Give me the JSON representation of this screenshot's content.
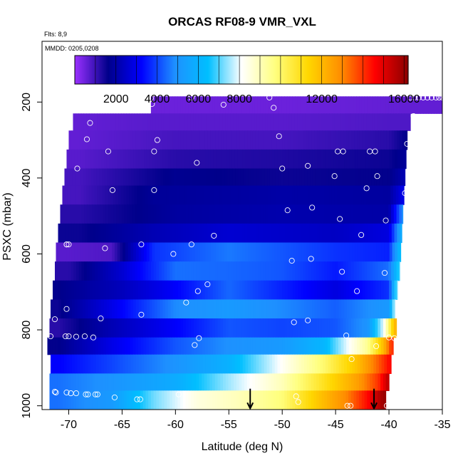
{
  "chart_data": {
    "type": "heatmap",
    "title": "ORCAS RF08-9 VMR_VXL",
    "flights_note": "Flts: 8,9",
    "date_note": "MMDD: 0205,0208",
    "xlabel": "Latitude (deg N)",
    "ylabel": "PSXC (mbar)",
    "xlim": [
      -72.5,
      -35
    ],
    "ylim": [
      1010,
      40
    ],
    "y_reversed": true,
    "x_ticks": [
      -70,
      -65,
      -60,
      -55,
      -50,
      -45,
      -40,
      -35
    ],
    "x_tick_labels": [
      "-70",
      "-65",
      "-60",
      "-55",
      "-50",
      "-45",
      "-40",
      "-35"
    ],
    "y_ticks": [
      200,
      400,
      600,
      800,
      1000
    ],
    "y_tick_labels": [
      "200",
      "400",
      "600",
      "800",
      "1000"
    ],
    "colorbar": {
      "min": 0,
      "max": 16200,
      "ticks": [
        2000,
        4000,
        6000,
        8000,
        12000,
        16000
      ],
      "tick_labels": [
        "2000",
        "4000",
        "6000",
        "8000",
        "12000",
        "16000"
      ],
      "colors": [
        "#9b30ff",
        "#00008b",
        "#0000ff",
        "#1e90ff",
        "#00bfff",
        "#ffffff",
        "#ffff80",
        "#ffd700",
        "#ff8c00",
        "#ff0000",
        "#8b0000"
      ]
    },
    "bands": [
      {
        "p_top": 185,
        "p_bot": 230,
        "x_min": -62.3,
        "x_max": -35.0,
        "values": [
          {
            "x": -62,
            "v": 500
          },
          {
            "x": -50,
            "v": 500
          },
          {
            "x": -38,
            "v": 600
          }
        ]
      },
      {
        "p_top": 230,
        "p_bot": 275,
        "x_min": -69.6,
        "x_max": -38.0,
        "values": [
          {
            "x": -69,
            "v": 600
          },
          {
            "x": -62,
            "v": 700
          },
          {
            "x": -50,
            "v": 700
          },
          {
            "x": -40,
            "v": 800
          }
        ]
      },
      {
        "p_top": 275,
        "p_bot": 325,
        "x_min": -70.0,
        "x_max": -38.3,
        "values": [
          {
            "x": -69,
            "v": 600
          },
          {
            "x": -60,
            "v": 900
          },
          {
            "x": -50,
            "v": 900
          },
          {
            "x": -40,
            "v": 1200
          },
          {
            "x": -38.5,
            "v": 1600
          }
        ]
      },
      {
        "p_top": 325,
        "p_bot": 375,
        "x_min": -70.2,
        "x_max": -38.4,
        "values": [
          {
            "x": -69,
            "v": 700
          },
          {
            "x": -60,
            "v": 1200
          },
          {
            "x": -50,
            "v": 1300
          },
          {
            "x": -40,
            "v": 1500
          },
          {
            "x": -38.5,
            "v": 1800
          }
        ]
      },
      {
        "p_top": 375,
        "p_bot": 420,
        "x_min": -70.4,
        "x_max": -38.5,
        "values": [
          {
            "x": -69,
            "v": 900
          },
          {
            "x": -60,
            "v": 1700
          },
          {
            "x": -50,
            "v": 1500
          },
          {
            "x": -40,
            "v": 1600
          },
          {
            "x": -38.5,
            "v": 2200
          }
        ]
      },
      {
        "p_top": 420,
        "p_bot": 470,
        "x_min": -70.6,
        "x_max": -38.6,
        "values": [
          {
            "x": -69,
            "v": 900
          },
          {
            "x": -62,
            "v": 1800
          },
          {
            "x": -50,
            "v": 2000
          },
          {
            "x": -40,
            "v": 1900
          },
          {
            "x": -38.6,
            "v": 3000
          }
        ]
      },
      {
        "p_top": 470,
        "p_bot": 520,
        "x_min": -70.8,
        "x_max": -38.7,
        "values": [
          {
            "x": -69,
            "v": 1200
          },
          {
            "x": -60,
            "v": 1900
          },
          {
            "x": -50,
            "v": 2100
          },
          {
            "x": -40,
            "v": 2000
          },
          {
            "x": -38.7,
            "v": 5000
          }
        ]
      },
      {
        "p_top": 520,
        "p_bot": 570,
        "x_min": -71.0,
        "x_max": -38.8,
        "values": [
          {
            "x": -69,
            "v": 1500
          },
          {
            "x": -62,
            "v": 2200
          },
          {
            "x": -55,
            "v": 2600
          },
          {
            "x": -45,
            "v": 2400
          },
          {
            "x": -40,
            "v": 2800
          },
          {
            "x": -38.8,
            "v": 6000
          }
        ]
      },
      {
        "p_top": 570,
        "p_bot": 620,
        "x_min": -71.2,
        "x_max": -38.9,
        "values": [
          {
            "x": -70,
            "v": 700
          },
          {
            "x": -66,
            "v": 800
          },
          {
            "x": -62,
            "v": 3800
          },
          {
            "x": -55,
            "v": 4600
          },
          {
            "x": -50,
            "v": 4200
          },
          {
            "x": -45,
            "v": 3800
          },
          {
            "x": -40,
            "v": 3600
          },
          {
            "x": -38.9,
            "v": 6500
          }
        ]
      },
      {
        "p_top": 620,
        "p_bot": 670,
        "x_min": -71.3,
        "x_max": -39.0,
        "values": [
          {
            "x": -70,
            "v": 1200
          },
          {
            "x": -65,
            "v": 2600
          },
          {
            "x": -60,
            "v": 4500
          },
          {
            "x": -55,
            "v": 4400
          },
          {
            "x": -50,
            "v": 4200
          },
          {
            "x": -45,
            "v": 3500
          },
          {
            "x": -40,
            "v": 4500
          },
          {
            "x": -39,
            "v": 7000
          }
        ]
      },
      {
        "p_top": 670,
        "p_bot": 720,
        "x_min": -71.5,
        "x_max": -39.2,
        "values": [
          {
            "x": -71,
            "v": 1600
          },
          {
            "x": -65,
            "v": 2300
          },
          {
            "x": -60,
            "v": 3200
          },
          {
            "x": -55,
            "v": 4400
          },
          {
            "x": -50,
            "v": 3600
          },
          {
            "x": -45,
            "v": 2800
          },
          {
            "x": -40,
            "v": 3800
          },
          {
            "x": -39.2,
            "v": 7500
          }
        ]
      },
      {
        "p_top": 720,
        "p_bot": 770,
        "x_min": -71.7,
        "x_max": -39.4,
        "values": [
          {
            "x": -71,
            "v": 1500
          },
          {
            "x": -66,
            "v": 2900
          },
          {
            "x": -60,
            "v": 4800
          },
          {
            "x": -55,
            "v": 5200
          },
          {
            "x": -50,
            "v": 4800
          },
          {
            "x": -45,
            "v": 4300
          },
          {
            "x": -40,
            "v": 5200
          },
          {
            "x": -39.3,
            "v": 8500
          },
          {
            "x": -39,
            "v": 11000
          }
        ]
      },
      {
        "p_top": 770,
        "p_bot": 820,
        "x_min": -71.8,
        "x_max": -39.3,
        "values": [
          {
            "x": -71,
            "v": 1200
          },
          {
            "x": -66,
            "v": 2200
          },
          {
            "x": -60,
            "v": 3200
          },
          {
            "x": -55,
            "v": 4200
          },
          {
            "x": -50,
            "v": 4000
          },
          {
            "x": -45,
            "v": 4200
          },
          {
            "x": -42,
            "v": 5000
          },
          {
            "x": -40.5,
            "v": 8000
          },
          {
            "x": -39.5,
            "v": 12000
          }
        ]
      },
      {
        "p_top": 820,
        "p_bot": 865,
        "x_min": -72.0,
        "x_max": -39.6,
        "values": [
          {
            "x": -71,
            "v": 1600
          },
          {
            "x": -66,
            "v": 2900
          },
          {
            "x": -60,
            "v": 4200
          },
          {
            "x": -55,
            "v": 4900
          },
          {
            "x": -50,
            "v": 5200
          },
          {
            "x": -46,
            "v": 6200
          },
          {
            "x": -44,
            "v": 7900
          },
          {
            "x": -42,
            "v": 9500
          },
          {
            "x": -40.5,
            "v": 12000
          },
          {
            "x": -39.8,
            "v": 14000
          }
        ]
      },
      {
        "p_top": 865,
        "p_bot": 915,
        "x_min": -71.7,
        "x_max": -39.8,
        "values": [
          {
            "x": -71,
            "v": 3200
          },
          {
            "x": -66,
            "v": 4000
          },
          {
            "x": -60,
            "v": 5000
          },
          {
            "x": -55,
            "v": 6000
          },
          {
            "x": -50,
            "v": 8200
          },
          {
            "x": -46,
            "v": 10000
          },
          {
            "x": -43,
            "v": 11800
          },
          {
            "x": -41,
            "v": 13500
          },
          {
            "x": -40,
            "v": 14500
          }
        ]
      },
      {
        "p_top": 915,
        "p_bot": 960,
        "x_min": -71.8,
        "x_max": -40.0,
        "values": [
          {
            "x": -71,
            "v": 4500
          },
          {
            "x": -66,
            "v": 5000
          },
          {
            "x": -60,
            "v": 5800
          },
          {
            "x": -55,
            "v": 7500
          },
          {
            "x": -50,
            "v": 9000
          },
          {
            "x": -46,
            "v": 11000
          },
          {
            "x": -43,
            "v": 12500
          },
          {
            "x": -41,
            "v": 14000
          },
          {
            "x": -40.1,
            "v": 15500
          }
        ]
      },
      {
        "p_top": 960,
        "p_bot": 1008,
        "x_min": -71.8,
        "x_max": -40.3,
        "values": [
          {
            "x": -71,
            "v": 4500
          },
          {
            "x": -66,
            "v": 5200
          },
          {
            "x": -62,
            "v": 7200
          },
          {
            "x": -58,
            "v": 8500
          },
          {
            "x": -54,
            "v": 9000
          },
          {
            "x": -50,
            "v": 9800
          },
          {
            "x": -47,
            "v": 11500
          },
          {
            "x": -44,
            "v": 13000
          },
          {
            "x": -42,
            "v": 14500
          },
          {
            "x": -40.5,
            "v": 16000
          }
        ]
      }
    ],
    "samples": [
      [
        -62.3,
        190
      ],
      [
        -62.2,
        205
      ],
      [
        -58.5,
        188
      ],
      [
        -55.5,
        207
      ],
      [
        -51.2,
        188
      ],
      [
        -50.8,
        215
      ],
      [
        -38.0,
        188
      ],
      [
        -37.6,
        188
      ],
      [
        -37.2,
        188
      ],
      [
        -36.8,
        188
      ],
      [
        -36.4,
        188
      ],
      [
        -36.0,
        188
      ],
      [
        -35.6,
        188
      ],
      [
        -35.3,
        188
      ],
      [
        -35.0,
        188
      ],
      [
        -67.8,
        213
      ],
      [
        -68.0,
        255
      ],
      [
        -68.3,
        298
      ],
      [
        -37.7,
        237
      ],
      [
        -66.3,
        330
      ],
      [
        -62.0,
        330
      ],
      [
        -61.7,
        300
      ],
      [
        -50.3,
        290
      ],
      [
        -44.8,
        330
      ],
      [
        -44.3,
        330
      ],
      [
        -41.8,
        330
      ],
      [
        -41.3,
        330
      ],
      [
        -38.3,
        310
      ],
      [
        -69.2,
        375
      ],
      [
        -58.0,
        360
      ],
      [
        -47.6,
        368
      ],
      [
        -50.0,
        375
      ],
      [
        -45.1,
        395
      ],
      [
        -41.1,
        395
      ],
      [
        -65.9,
        432
      ],
      [
        -62.0,
        432
      ],
      [
        -42.1,
        427
      ],
      [
        -38.5,
        440
      ],
      [
        -49.5,
        485
      ],
      [
        -47.2,
        478
      ],
      [
        -44.6,
        508
      ],
      [
        -40.3,
        512
      ],
      [
        -56.4,
        552
      ],
      [
        -42.6,
        550
      ],
      [
        -70.2,
        575
      ],
      [
        -70.0,
        575
      ],
      [
        -70.2,
        575
      ],
      [
        -66.6,
        585
      ],
      [
        -63.2,
        575
      ],
      [
        -58.5,
        575
      ],
      [
        -38.0,
        575
      ],
      [
        -60.2,
        600
      ],
      [
        -49.1,
        618
      ],
      [
        -47.3,
        613
      ],
      [
        -44.4,
        647
      ],
      [
        -40.4,
        650
      ],
      [
        -57.0,
        680
      ],
      [
        -57.9,
        698
      ],
      [
        -43.0,
        698
      ],
      [
        -59.0,
        728
      ],
      [
        -70.2,
        745
      ],
      [
        -71.3,
        772
      ],
      [
        -67.0,
        770
      ],
      [
        -63.2,
        760
      ],
      [
        -48.9,
        780
      ],
      [
        -47.6,
        775
      ],
      [
        -71.7,
        817
      ],
      [
        -70.3,
        817
      ],
      [
        -70.0,
        817
      ],
      [
        -69.3,
        818
      ],
      [
        -68.5,
        817
      ],
      [
        -67.7,
        820
      ],
      [
        -57.8,
        822
      ],
      [
        -58.2,
        840
      ],
      [
        -44.0,
        815
      ],
      [
        -43.5,
        877
      ],
      [
        -41.2,
        843
      ],
      [
        -40.0,
        820
      ],
      [
        -39.5,
        822
      ],
      [
        -39.2,
        897
      ],
      [
        -71.3,
        963
      ],
      [
        -71.2,
        965
      ],
      [
        -70.2,
        965
      ],
      [
        -69.8,
        967
      ],
      [
        -69.3,
        967
      ],
      [
        -68.4,
        970
      ],
      [
        -68.2,
        970
      ],
      [
        -67.5,
        970
      ],
      [
        -67.3,
        970
      ],
      [
        -65.7,
        978
      ],
      [
        -63.6,
        983
      ],
      [
        -63.3,
        983
      ],
      [
        -59.7,
        970
      ],
      [
        -48.7,
        975
      ],
      [
        -48.5,
        990
      ],
      [
        -43.9,
        1000
      ],
      [
        -43.6,
        1000
      ],
      [
        -40.2,
        1000
      ]
    ],
    "arrows": [
      {
        "x": -53.0
      },
      {
        "x": -41.4
      }
    ]
  }
}
